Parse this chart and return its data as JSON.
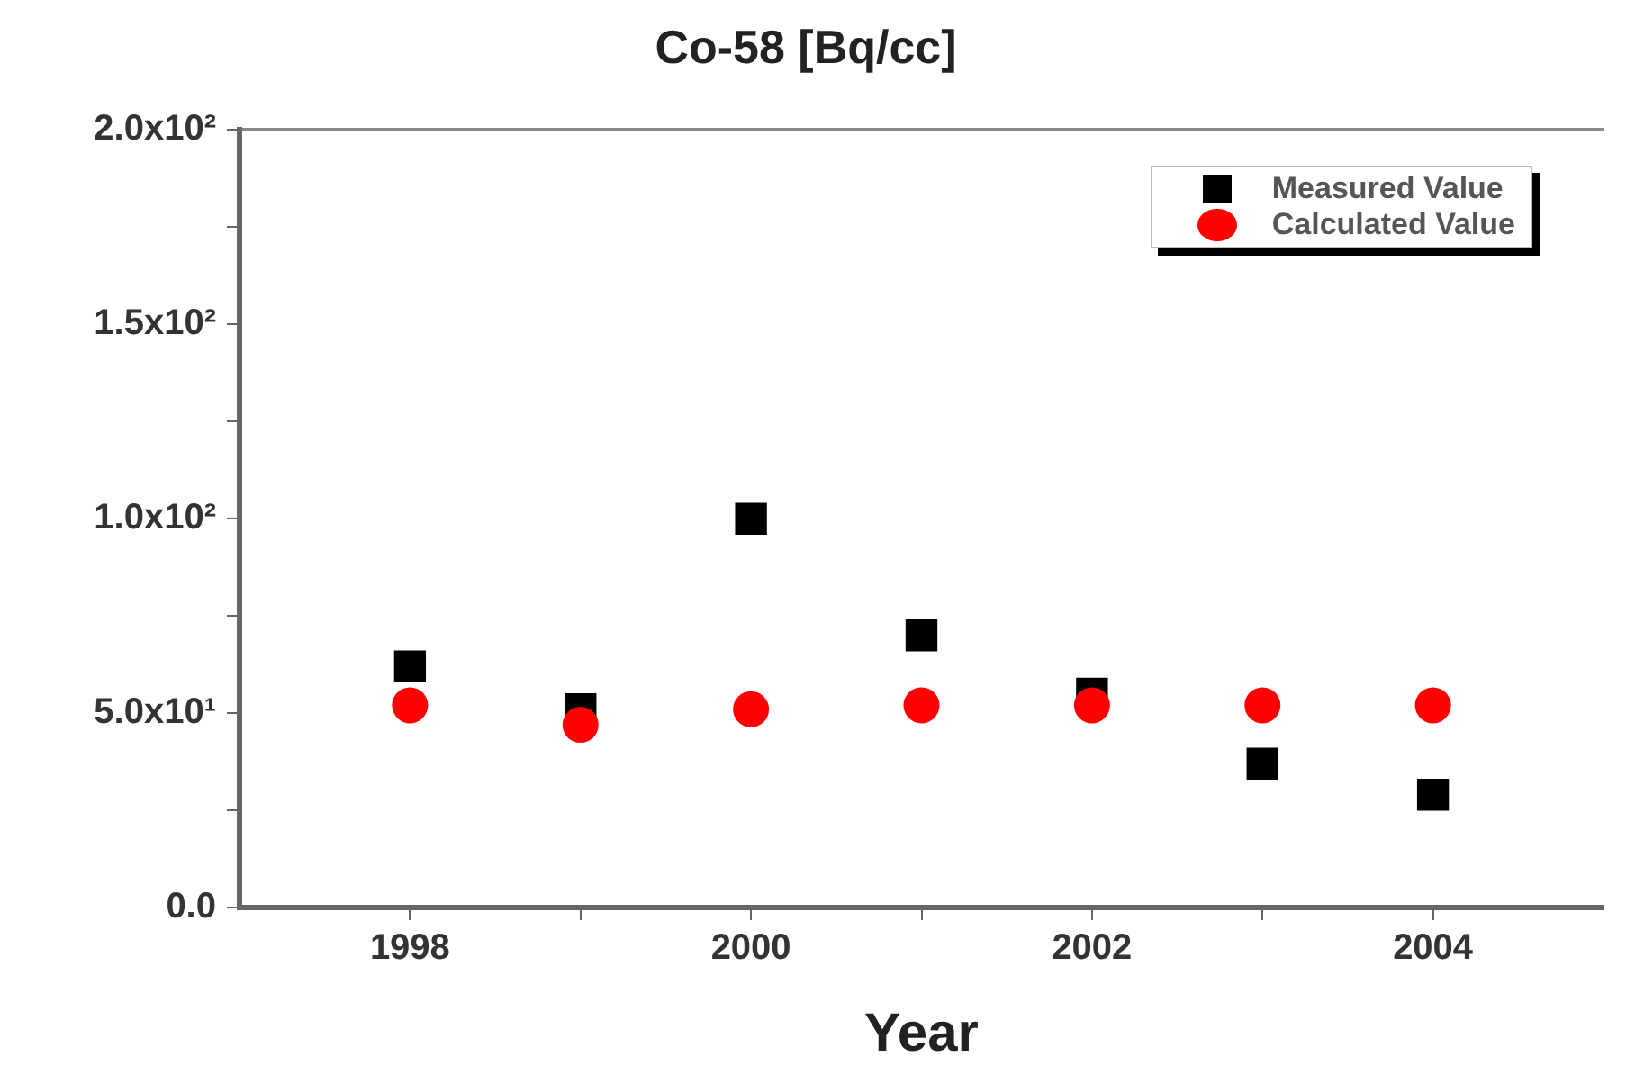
{
  "chart_data": {
    "type": "scatter",
    "title": "Co-58 [Bq/cc]",
    "xlabel": "Year",
    "x": [
      1998,
      1999,
      2000,
      2001,
      2002,
      2003,
      2004
    ],
    "series": [
      {
        "name": "Measured Value",
        "color": "#000000",
        "marker": "square",
        "values": [
          62,
          51,
          100,
          70,
          55,
          37,
          29
        ]
      },
      {
        "name": "Calculated Value",
        "color": "#ff0000",
        "marker": "circle",
        "values": [
          52,
          47,
          51,
          52,
          52,
          52,
          52
        ]
      }
    ],
    "xlim": [
      1997,
      2005
    ],
    "xticks": [
      1998,
      {
        "value": 1999,
        "label": null
      },
      2000,
      {
        "value": 2001,
        "label": null
      },
      2002,
      {
        "value": 2003,
        "label": null
      },
      2004
    ],
    "ylim": [
      0,
      200
    ],
    "yticks": [
      {
        "value": 0,
        "label": "0.0"
      },
      {
        "value": 25,
        "label": null
      },
      {
        "value": 50,
        "label": "5.0x10¹"
      },
      {
        "value": 75,
        "label": null
      },
      {
        "value": 100,
        "label": "1.0x10²"
      },
      {
        "value": 125,
        "label": null
      },
      {
        "value": 150,
        "label": "1.5x10²"
      },
      {
        "value": 175,
        "label": null
      },
      {
        "value": 200,
        "label": "2.0x10²"
      }
    ],
    "grid": false,
    "legend": "top right"
  }
}
